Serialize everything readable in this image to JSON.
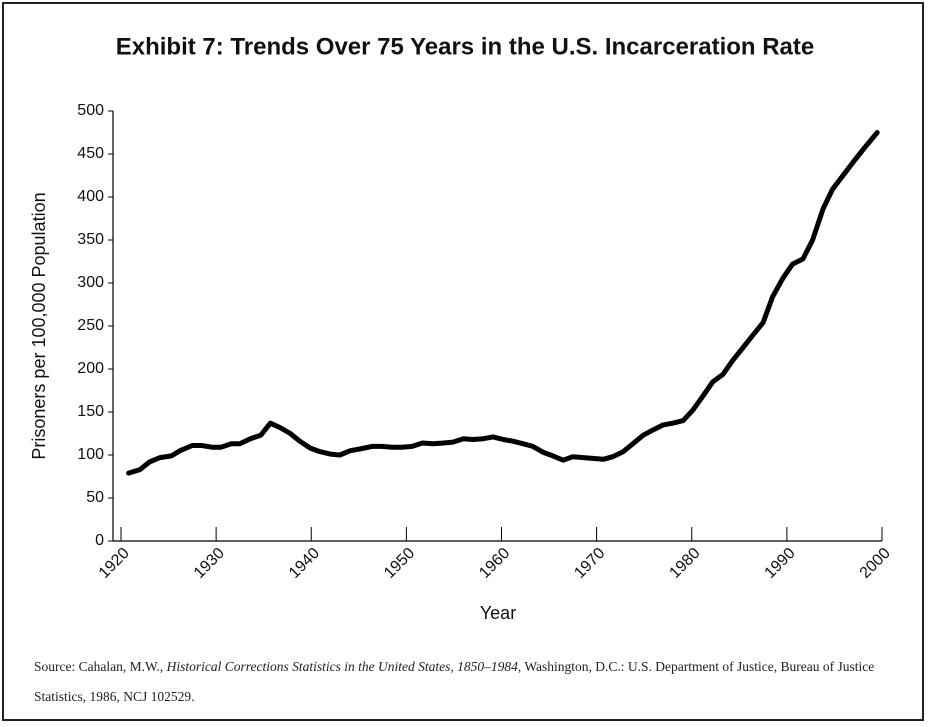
{
  "chart_data": {
    "type": "line",
    "title": "Exhibit 7: Trends Over 75 Years in the U.S. Incarceration Rate",
    "x_label": "Year",
    "y_label": "Prisoners per 100,000 Population",
    "x": [
      1920.8,
      1922.0,
      1923.0,
      1924.1,
      1925.3,
      1926.2,
      1927.5,
      1928.5,
      1929.6,
      1930.5,
      1931.6,
      1932.5,
      1933.6,
      1934.7,
      1935.7,
      1936.7,
      1937.8,
      1938.8,
      1939.9,
      1940.9,
      1942.0,
      1943.0,
      1944.1,
      1945.1,
      1946.4,
      1947.4,
      1948.5,
      1949.5,
      1950.6,
      1951.7,
      1952.8,
      1953.9,
      1954.9,
      1956.0,
      1957.0,
      1958.1,
      1959.1,
      1960.2,
      1961.2,
      1962.3,
      1963.3,
      1964.4,
      1965.4,
      1966.5,
      1967.5,
      1968.6,
      1969.6,
      1970.7,
      1971.7,
      1972.8,
      1973.8,
      1974.9,
      1975.9,
      1977.0,
      1978.0,
      1979.1,
      1980.1,
      1981.2,
      1982.2,
      1983.3,
      1984.3,
      1985.4,
      1986.4,
      1987.5,
      1988.5,
      1989.6,
      1990.6,
      1991.7,
      1992.7,
      1993.8,
      1994.8,
      1995.9,
      1997.0,
      1998.0,
      1999.5
    ],
    "values": [
      79,
      83,
      92,
      97,
      99,
      105,
      111,
      111,
      109,
      109,
      113,
      113,
      119,
      123,
      137,
      132,
      125,
      116,
      108,
      104,
      101,
      100,
      105,
      107,
      110,
      110,
      109,
      109,
      110,
      114,
      113,
      114,
      115,
      119,
      118,
      119,
      121,
      118,
      116,
      113,
      110,
      103,
      99,
      94,
      98,
      97,
      96,
      95,
      98,
      104,
      113,
      123,
      129,
      135,
      137,
      140,
      152,
      169,
      185,
      194,
      210,
      225,
      239,
      254,
      284,
      306,
      322,
      328,
      350,
      386,
      409,
      425,
      441,
      455,
      475
    ],
    "color": "#000000",
    "xlim": [
      1920,
      2000
    ],
    "xticks": [
      1920,
      1930,
      1940,
      1950,
      1960,
      1970,
      1980,
      1990,
      2000
    ],
    "ylim": [
      0,
      500
    ],
    "yticks": [
      0,
      50,
      100,
      150,
      200,
      250,
      300,
      350,
      400,
      450,
      500
    ]
  },
  "source": {
    "prefix": "Source: Cahalan, M.W., ",
    "title": "Historical Corrections Statistics in the United States, 1850–1984",
    "suffix": ", Washington, D.C.: U.S. Department of Justice, Bureau of Justice Statistics, 1986, NCJ 102529."
  }
}
